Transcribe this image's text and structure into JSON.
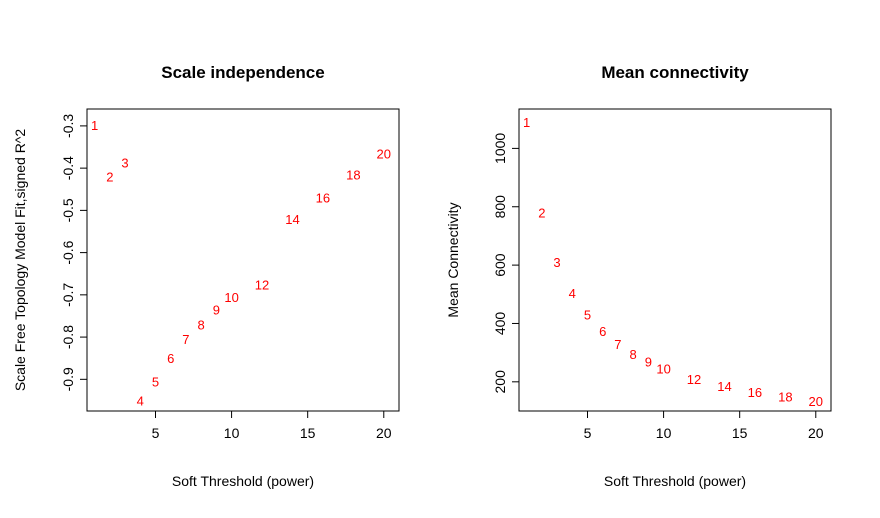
{
  "chart_data": [
    {
      "type": "scatter",
      "title": "Scale independence",
      "xlabel": "Soft Threshold (power)",
      "ylabel": "Scale Free Topology Model Fit,signed R^2",
      "xlim": [
        0.5,
        21
      ],
      "ylim": [
        -0.975,
        -0.26
      ],
      "xticks": [
        5,
        10,
        15,
        20
      ],
      "yticks": [
        -0.9,
        -0.8,
        -0.7,
        -0.6,
        -0.5,
        -0.4,
        -0.3
      ],
      "ytick_labels": [
        "-0.9",
        "-0.8",
        "-0.7",
        "-0.6",
        "-0.5",
        "-0.4",
        "-0.3"
      ],
      "point_color": "#ff0000",
      "grid": false,
      "points": [
        {
          "label": "1",
          "x": 1,
          "y": -0.298
        },
        {
          "label": "2",
          "x": 2,
          "y": -0.42
        },
        {
          "label": "3",
          "x": 3,
          "y": -0.387
        },
        {
          "label": "4",
          "x": 4,
          "y": -0.95
        },
        {
          "label": "5",
          "x": 5,
          "y": -0.905
        },
        {
          "label": "6",
          "x": 6,
          "y": -0.85
        },
        {
          "label": "7",
          "x": 7,
          "y": -0.805
        },
        {
          "label": "8",
          "x": 8,
          "y": -0.77
        },
        {
          "label": "9",
          "x": 9,
          "y": -0.735
        },
        {
          "label": "10",
          "x": 10,
          "y": -0.705
        },
        {
          "label": "12",
          "x": 12,
          "y": -0.675
        },
        {
          "label": "14",
          "x": 14,
          "y": -0.52
        },
        {
          "label": "16",
          "x": 16,
          "y": -0.47
        },
        {
          "label": "18",
          "x": 18,
          "y": -0.415
        },
        {
          "label": "20",
          "x": 20,
          "y": -0.365
        }
      ]
    },
    {
      "type": "scatter",
      "title": "Mean connectivity",
      "xlabel": "Soft Threshold (power)",
      "ylabel": "Mean Connectivity",
      "xlim": [
        0.5,
        21
      ],
      "ylim": [
        100,
        1135
      ],
      "xticks": [
        5,
        10,
        15,
        20
      ],
      "yticks": [
        200,
        400,
        600,
        800,
        1000
      ],
      "ytick_labels": [
        "200",
        "400",
        "600",
        "800",
        "1000"
      ],
      "point_color": "#ff0000",
      "grid": false,
      "points": [
        {
          "label": "1",
          "x": 1,
          "y": 1090
        },
        {
          "label": "2",
          "x": 2,
          "y": 780
        },
        {
          "label": "3",
          "x": 3,
          "y": 610
        },
        {
          "label": "4",
          "x": 4,
          "y": 505
        },
        {
          "label": "5",
          "x": 5,
          "y": 430
        },
        {
          "label": "6",
          "x": 6,
          "y": 375
        },
        {
          "label": "7",
          "x": 7,
          "y": 330
        },
        {
          "label": "8",
          "x": 8,
          "y": 295
        },
        {
          "label": "9",
          "x": 9,
          "y": 270
        },
        {
          "label": "10",
          "x": 10,
          "y": 245
        },
        {
          "label": "12",
          "x": 12,
          "y": 210
        },
        {
          "label": "14",
          "x": 14,
          "y": 185
        },
        {
          "label": "16",
          "x": 16,
          "y": 165
        },
        {
          "label": "18",
          "x": 18,
          "y": 150
        },
        {
          "label": "20",
          "x": 20,
          "y": 135
        }
      ]
    }
  ]
}
